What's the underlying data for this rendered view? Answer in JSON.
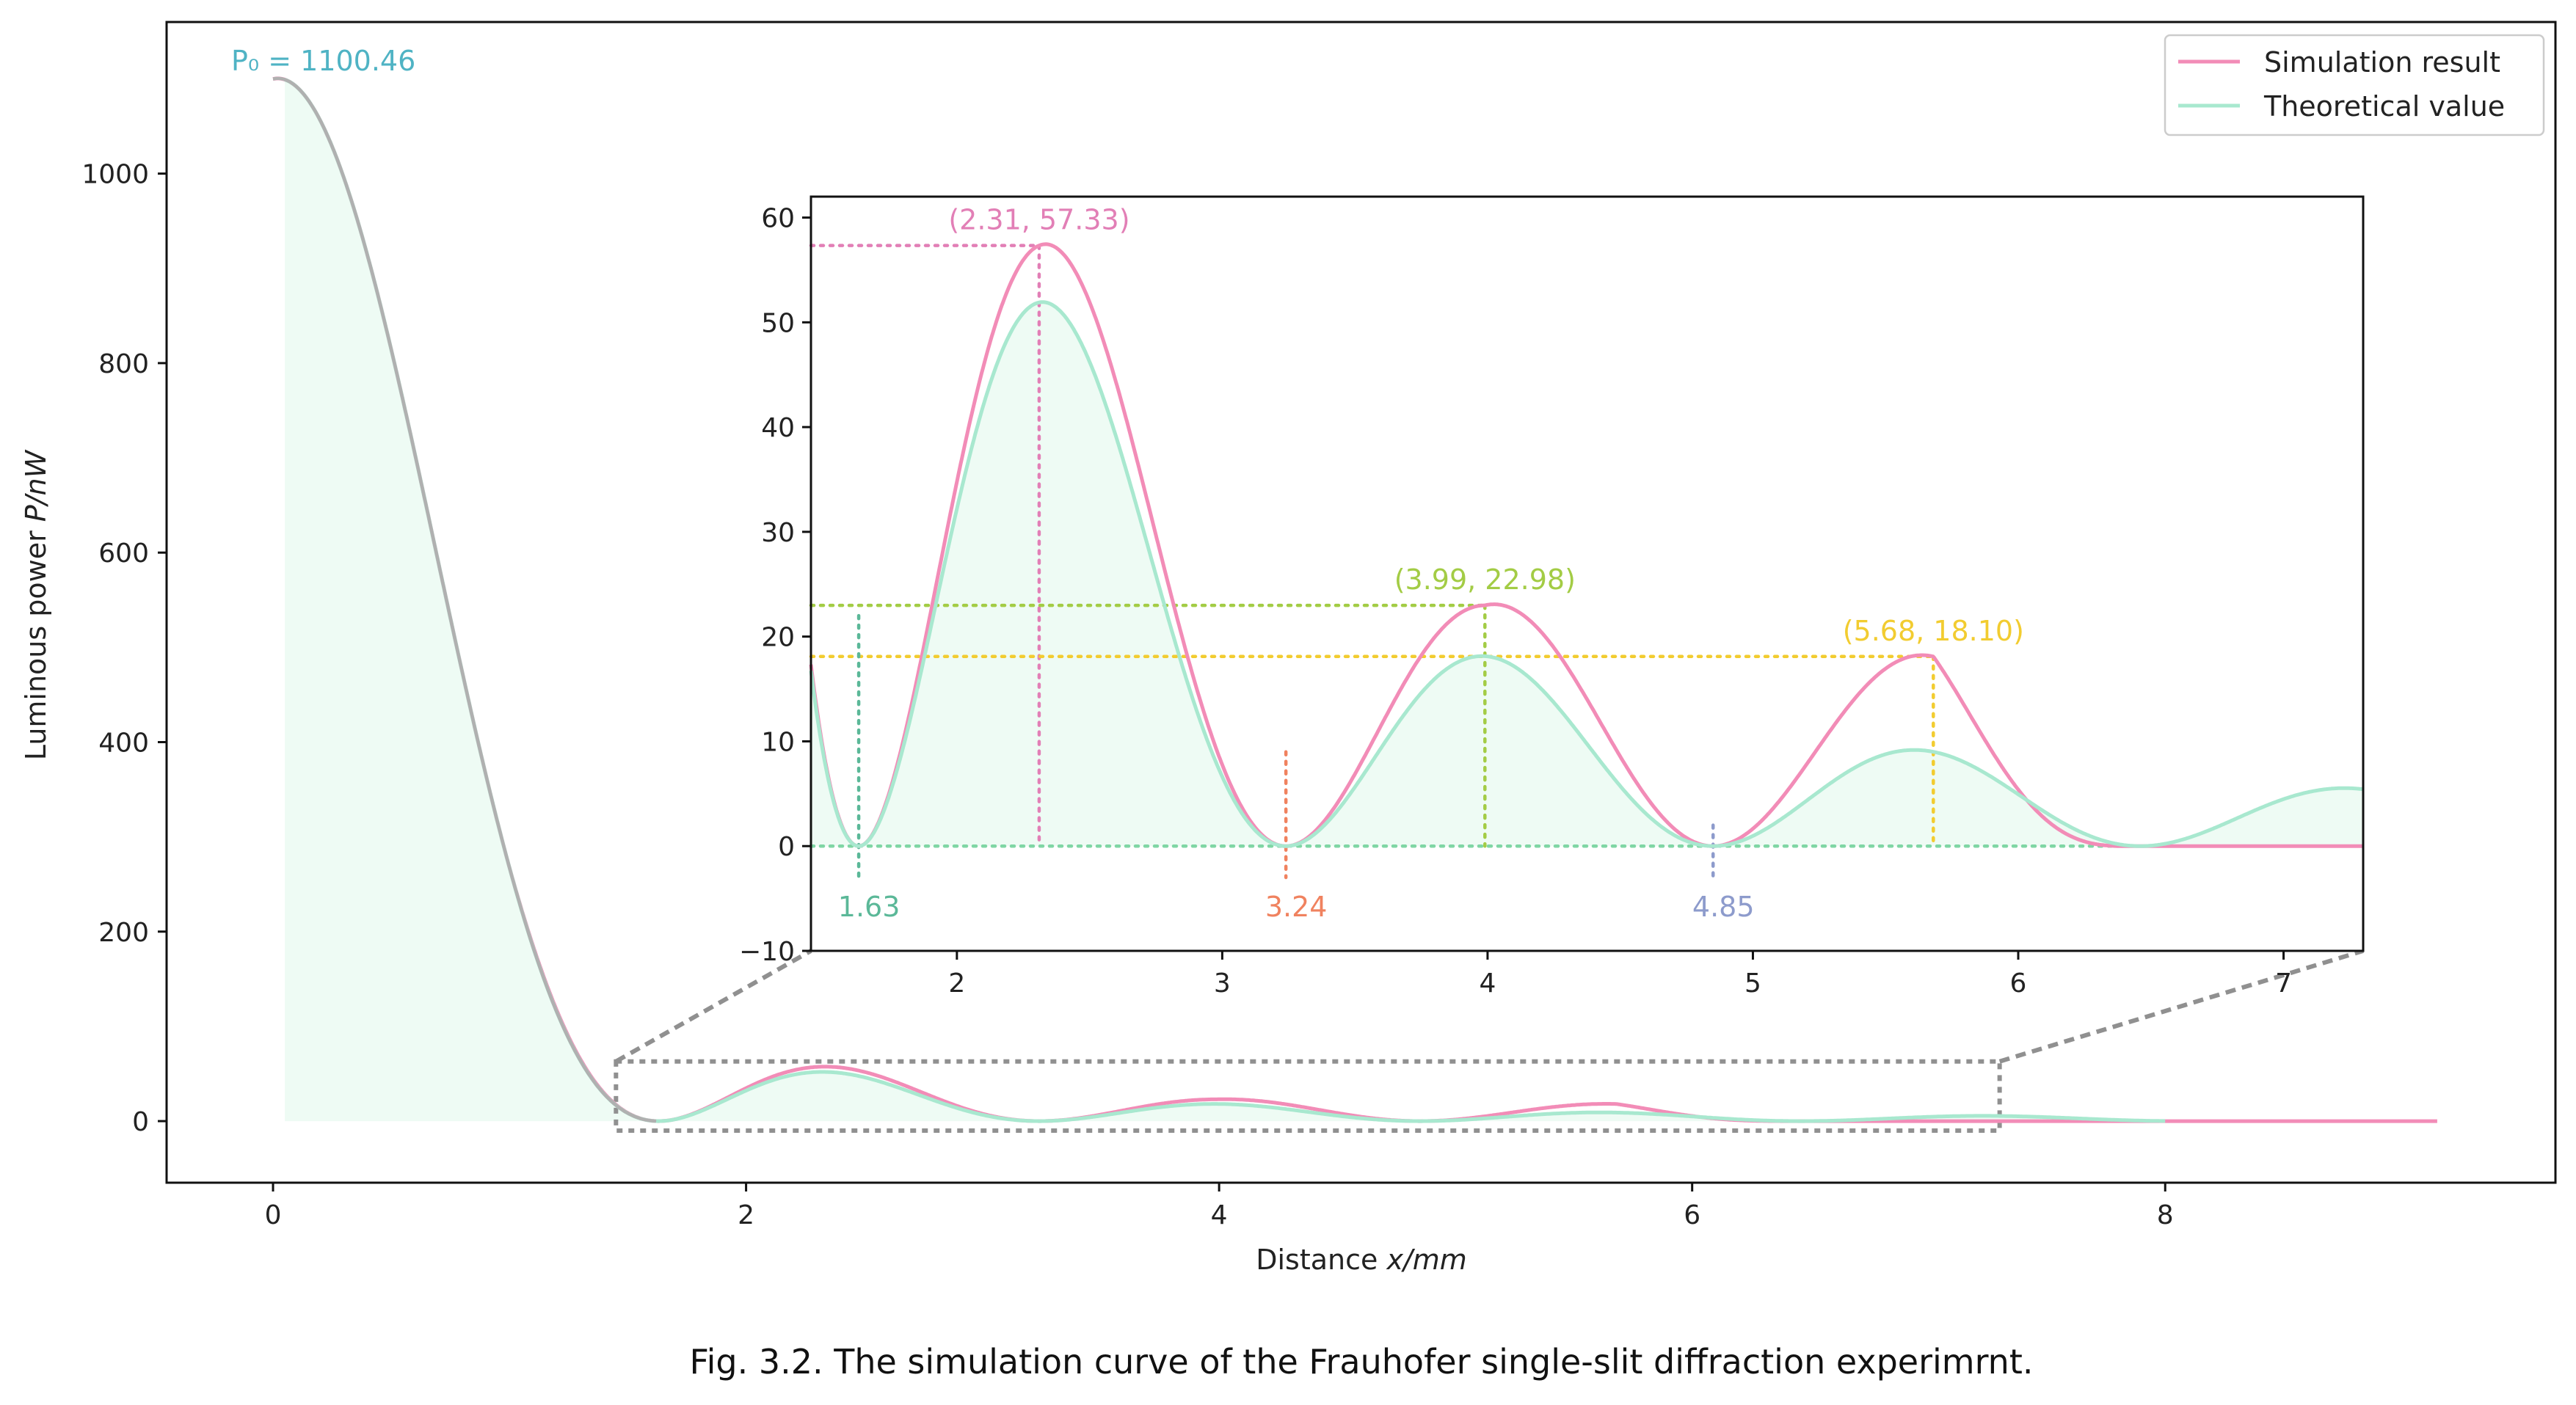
{
  "caption": "Fig. 3.2. The simulation curve of the Frauhofer single-slit diffraction experimrnt.",
  "colors": {
    "simulation": "#f28cb7",
    "theoretical": "#a8e8cf",
    "fill": "#eefbf4",
    "inset_border": "#333333",
    "zoom_box": "#909090"
  },
  "chart_data": {
    "type": "line",
    "main": {
      "xlabel_prefix": "Distance ",
      "xlabel_var": "x",
      "xlabel_unit": "/mm",
      "ylabel_prefix": "Luminous power ",
      "ylabel_var": "P",
      "ylabel_unit": "/nW",
      "xlim": [
        -0.45,
        9.65
      ],
      "ylim": [
        -65,
        1160
      ],
      "xticks": [
        0,
        2,
        4,
        6,
        8
      ],
      "yticks": [
        0,
        200,
        400,
        600,
        800,
        1000
      ],
      "peak_annotation": "P₀ = 1100.46",
      "peak_value": 1100.46,
      "simulation_x_range": [
        0,
        9.15
      ],
      "theoretical_x_range": [
        0.05,
        8.0
      ],
      "zoom_box": {
        "x": [
          1.45,
          7.3
        ],
        "y": [
          -10,
          63
        ]
      }
    },
    "inset": {
      "xlim": [
        1.45,
        7.3
      ],
      "ylim": [
        -10,
        62
      ],
      "xticks": [
        2,
        3,
        4,
        5,
        6,
        7
      ],
      "yticks": [
        -10,
        0,
        10,
        20,
        30,
        40,
        50,
        60
      ],
      "maxima": [
        {
          "label": "(2.31, 57.33)",
          "x": 2.31,
          "y": 57.33,
          "color": "#e27fb6"
        },
        {
          "label": "(3.99, 22.98)",
          "x": 3.99,
          "y": 22.98,
          "color": "#a3cc45"
        },
        {
          "label": "(5.68, 18.10)",
          "x": 5.68,
          "y": 18.1,
          "color": "#f2cc30"
        }
      ],
      "minima": [
        {
          "label": "1.63",
          "x": 1.63,
          "color": "#5bb898",
          "line_top": 22
        },
        {
          "label": "3.24",
          "x": 3.24,
          "color": "#f0825f",
          "line_top": 9
        },
        {
          "label": "4.85",
          "x": 4.85,
          "color": "#8d9bcc",
          "line_top": 2
        }
      ],
      "zero_line_color": "#7fd6a4"
    },
    "series": [
      {
        "name": "Simulation result",
        "color": "#f28cb7"
      },
      {
        "name": "Theoretical value",
        "color": "#a8e8cf"
      }
    ],
    "legend_position": "top-right"
  }
}
